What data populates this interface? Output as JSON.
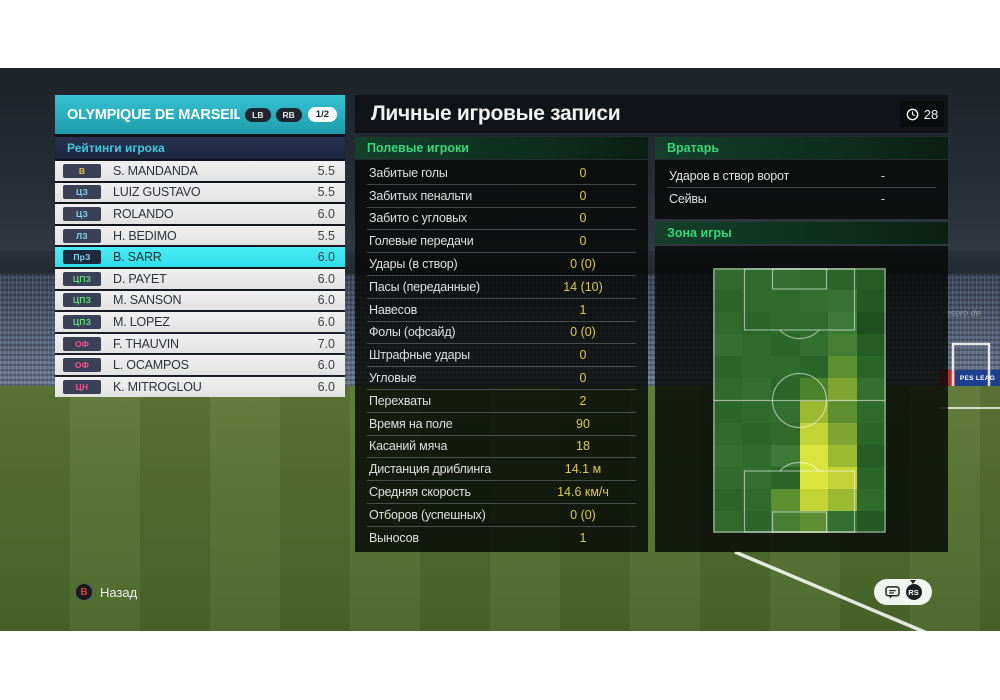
{
  "team_panel": {
    "team_name": "OLYMPIQUE DE MARSEILLE",
    "badge_lb": "LB",
    "badge_rb": "RB",
    "page_indicator": "1/2",
    "ratings_header": "Рейтинги игрока",
    "players": [
      {
        "pos": "В",
        "name": "S. MANDANDA",
        "rating": "5.5",
        "pos_color": "#e6c63a",
        "selected": false
      },
      {
        "pos": "ЦЗ",
        "name": "LUIZ GUSTAVO",
        "rating": "5.5",
        "pos_color": "#7fd4f0",
        "selected": false
      },
      {
        "pos": "ЦЗ",
        "name": "ROLANDO",
        "rating": "6.0",
        "pos_color": "#7fd4f0",
        "selected": false
      },
      {
        "pos": "ЛЗ",
        "name": "H. BEDIMO",
        "rating": "5.5",
        "pos_color": "#7fd4f0",
        "selected": false
      },
      {
        "pos": "ПрЗ",
        "name": "B. SARR",
        "rating": "6.0",
        "pos_color": "#8fd8ee",
        "selected": true
      },
      {
        "pos": "ЦПЗ",
        "name": "D. PAYET",
        "rating": "6.0",
        "pos_color": "#62d877",
        "selected": false
      },
      {
        "pos": "ЦПЗ",
        "name": "M. SANSON",
        "rating": "6.0",
        "pos_color": "#62d877",
        "selected": false
      },
      {
        "pos": "ЦПЗ",
        "name": "M. LOPEZ",
        "rating": "6.0",
        "pos_color": "#62d877",
        "selected": false
      },
      {
        "pos": "ОФ",
        "name": "F. THAUVIN",
        "rating": "7.0",
        "pos_color": "#f0568e",
        "selected": false
      },
      {
        "pos": "ОФ",
        "name": "L. OCAMPOS",
        "rating": "6.0",
        "pos_color": "#f0568e",
        "selected": false
      },
      {
        "pos": "ЦН",
        "name": "K. MITROGLOU",
        "rating": "6.0",
        "pos_color": "#f0568e",
        "selected": false
      }
    ]
  },
  "main": {
    "title": "Личные игровые записи",
    "time_badge": "28",
    "field_players": {
      "header": "Полевые игроки",
      "stats": [
        {
          "label": "Забитые голы",
          "value": "0"
        },
        {
          "label": "Забитых пенальти",
          "value": "0"
        },
        {
          "label": "Забито с угловых",
          "value": "0"
        },
        {
          "label": "Голевые передачи",
          "value": "0"
        },
        {
          "label": "Удары (в створ)",
          "value": "0 (0)"
        },
        {
          "label": "Пасы (переданные)",
          "value": "14 (10)"
        },
        {
          "label": "Навесов",
          "value": "1"
        },
        {
          "label": "Фолы (офсайд)",
          "value": "0 (0)"
        },
        {
          "label": "Штрафные удары",
          "value": "0"
        },
        {
          "label": "Угловые",
          "value": "0"
        },
        {
          "label": "Перехваты",
          "value": "2"
        },
        {
          "label": "Время на поле",
          "value": "90"
        },
        {
          "label": "Касаний мяча",
          "value": "18"
        },
        {
          "label": "Дистанция дриблинга",
          "value": "14.1 м"
        },
        {
          "label": "Средняя скорость",
          "value": "14.6 км/ч"
        },
        {
          "label": "Отборов (успешных)",
          "value": "0 (0)"
        },
        {
          "label": "Выносов",
          "value": "1"
        }
      ]
    },
    "goalkeeper": {
      "header": "Вратарь",
      "stats": [
        {
          "label": "Ударов в створ ворот",
          "value": "-"
        },
        {
          "label": "Сейвы",
          "value": "-"
        }
      ]
    },
    "zone": {
      "header": "Зона игры",
      "heatmap": [
        [
          "#2e6b2c",
          "#2e6b2c",
          "#326f30",
          "#2e6b2c",
          "#2a652a",
          "#265d26"
        ],
        [
          "#2a652a",
          "#2e6b2c",
          "#2e6b2c",
          "#326f30",
          "#357334",
          "#245824"
        ],
        [
          "#2e6b2c",
          "#2a652a",
          "#2e6b2c",
          "#2e6b2c",
          "#3d7a39",
          "#1f4f1f"
        ],
        [
          "#326f30",
          "#2e6b2c",
          "#2a652a",
          "#326f30",
          "#457f33",
          "#265d26"
        ],
        [
          "#2a652a",
          "#2e6b2c",
          "#2e6b2c",
          "#2a652a",
          "#5d8f30",
          "#2a652a"
        ],
        [
          "#2e6b2c",
          "#326f30",
          "#2a652a",
          "#4a832c",
          "#7ea52f",
          "#326f30"
        ],
        [
          "#2a652a",
          "#2e6b2c",
          "#326f30",
          "#9cba31",
          "#5d8f30",
          "#2e6b2c"
        ],
        [
          "#2e6b2c",
          "#2a652a",
          "#2e6b2c",
          "#c4d436",
          "#7ea52f",
          "#2a652a"
        ],
        [
          "#326f30",
          "#2e6b2c",
          "#3d7a39",
          "#d9e53c",
          "#9cba31",
          "#265d26"
        ],
        [
          "#2e6b2c",
          "#326f30",
          "#2a652a",
          "#d9e53c",
          "#c4d436",
          "#2a652a"
        ],
        [
          "#2a652a",
          "#2e6b2c",
          "#5d8f30",
          "#c4d436",
          "#9cba31",
          "#2e6b2c"
        ],
        [
          "#2e6b2c",
          "#2a652a",
          "#457f33",
          "#5d8f30",
          "#326f30",
          "#245824"
        ]
      ]
    }
  },
  "footer": {
    "back_button": "B",
    "back_label": "Назад",
    "rs_label": "RS"
  },
  "background": {
    "stand_text": "Tesoro de",
    "ad_text": "PES LEAG"
  },
  "colors": {
    "team_accent": "#2bb3c3",
    "selected_row": "#3ce9f2",
    "value_yellow": "#ddc94e",
    "section_green": "#35d67c",
    "ratings_header_text": "#41c8e0",
    "heat_hot": "#d9e53c"
  }
}
